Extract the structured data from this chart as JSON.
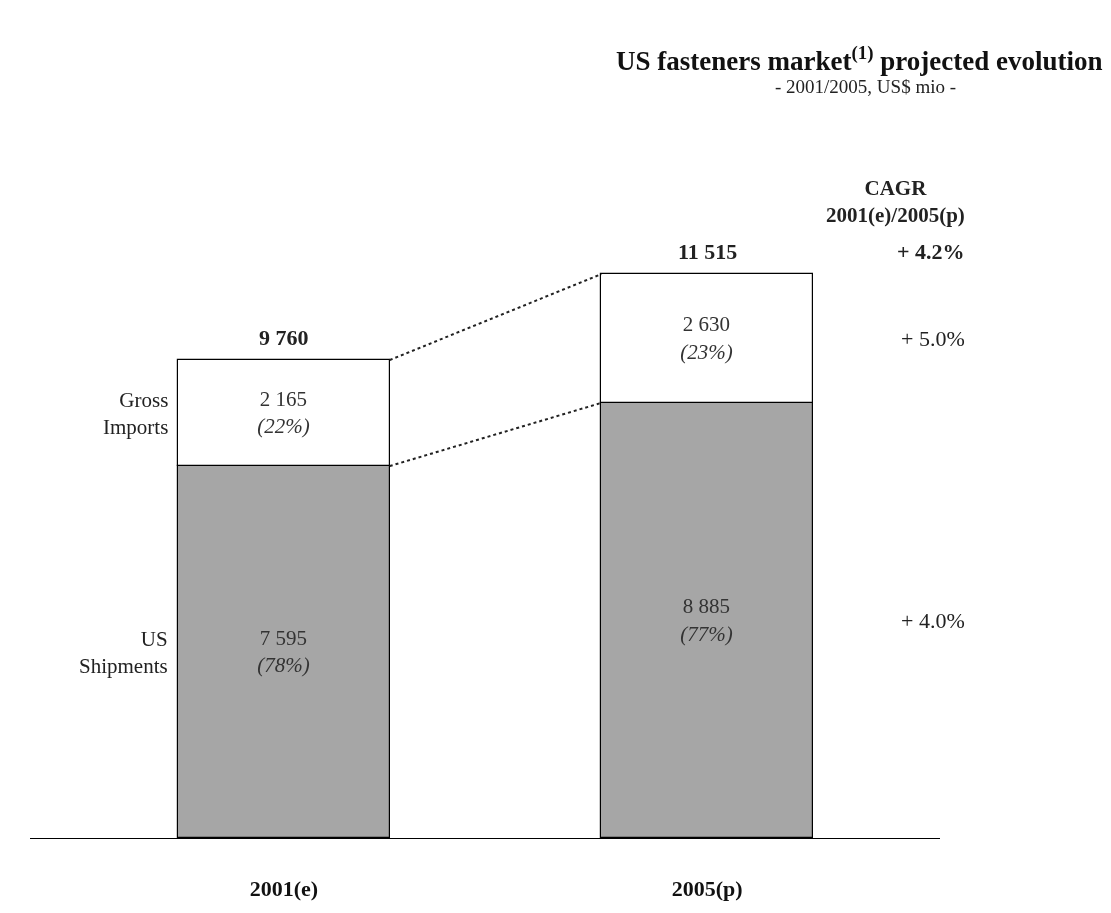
{
  "chart_data": {
    "type": "bar",
    "title": "US fasteners market$^{(1)}$ projected evolution",
    "subtitle": "- 2001/2005, US$ mio -",
    "categories": [
      "2001(e)",
      "2005(p)"
    ],
    "stacked": true,
    "series": [
      {
        "name": "US Shipments",
        "color": "#a6a6a6",
        "values": [
          7595,
          8885
        ],
        "value_labels": [
          "7 595\n(78%)",
          "8 885\n(77%)"
        ]
      },
      {
        "name": "Gross Imports",
        "color": "#ffffff",
        "values": [
          2165,
          2630
        ],
        "value_labels": [
          "2 165\n(22%)",
          "2 630\n(23%)"
        ]
      }
    ],
    "totals": [
      "9 760",
      "11 515"
    ],
    "annotations": [
      "CAGR\n2001(e)/2005(p)",
      "+ 4.2%",
      "+ 5.0%",
      "+ 4.0%"
    ]
  }
}
